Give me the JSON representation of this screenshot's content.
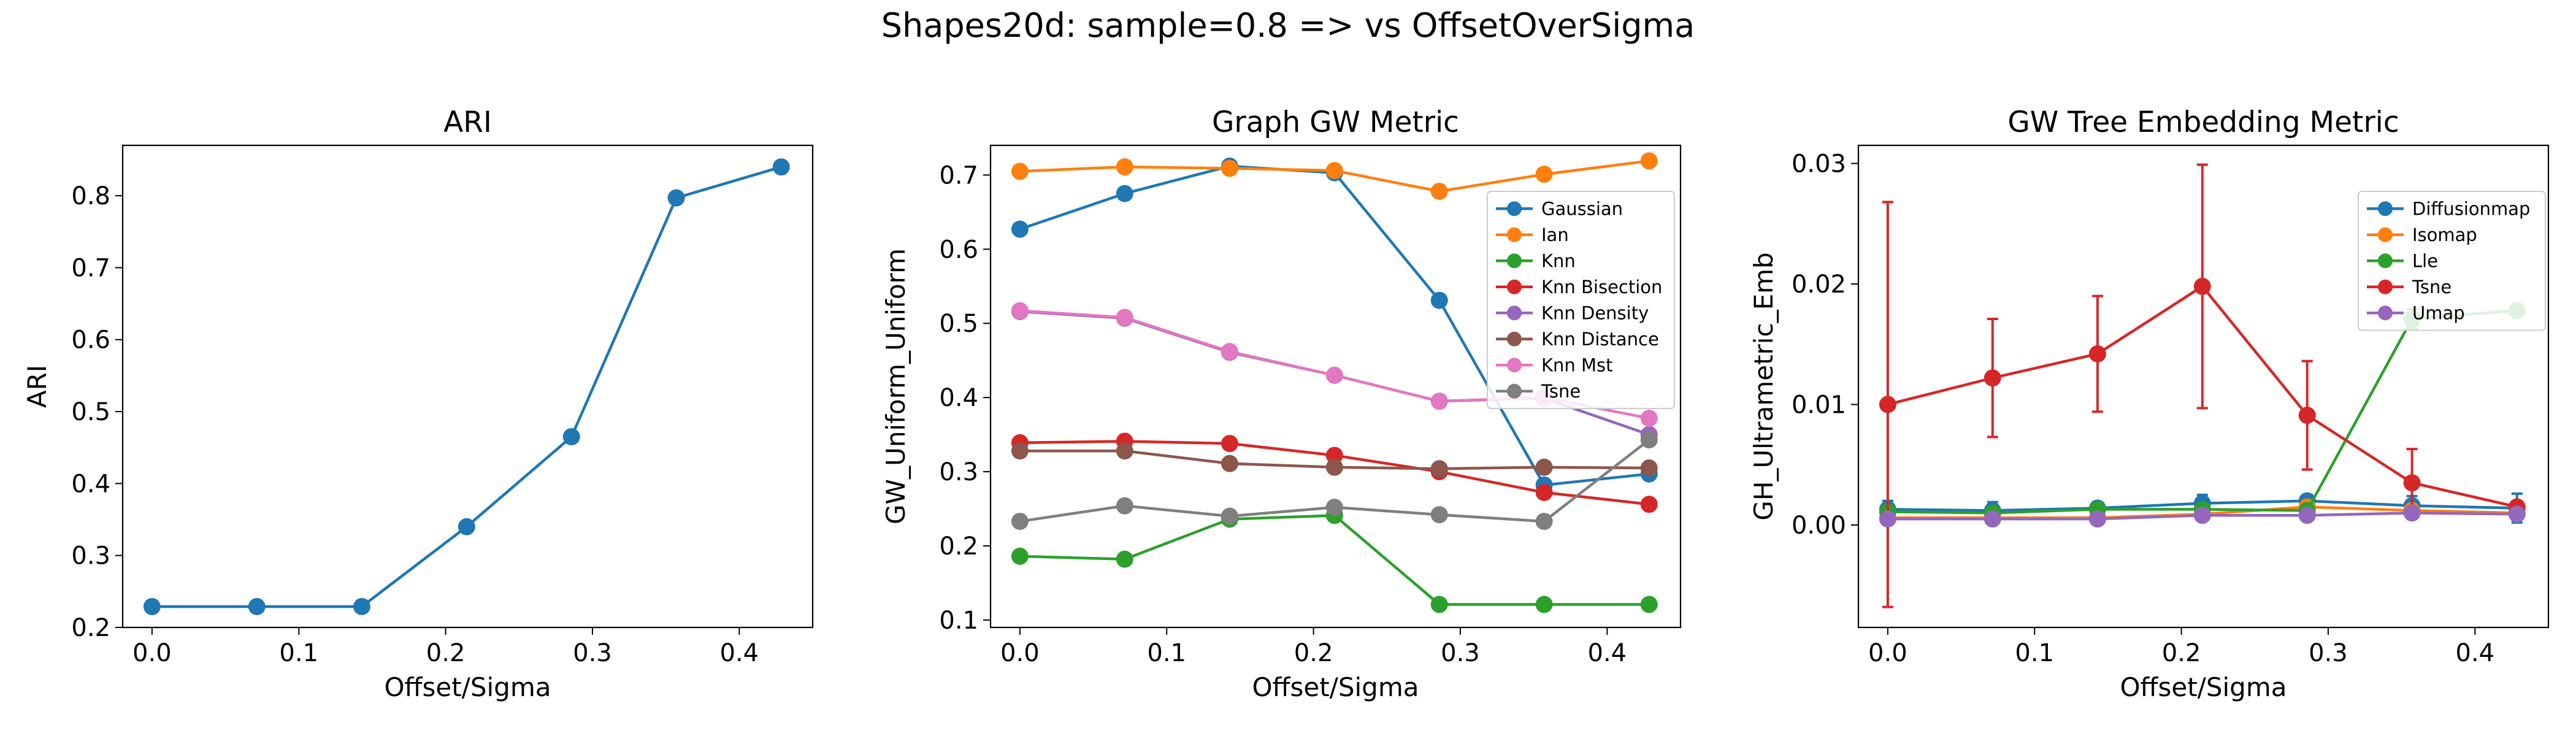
{
  "suptitle": "Shapes20d: sample=0.8 => vs OffsetOverSigma",
  "chart_data": [
    {
      "type": "line",
      "title": "ARI",
      "xlabel": "Offset/Sigma",
      "ylabel": "ARI",
      "xlim": [
        -0.02,
        0.45
      ],
      "ylim": [
        0.2,
        0.87
      ],
      "xticks": [
        0.0,
        0.1,
        0.2,
        0.3,
        0.4
      ],
      "xtick_labels": [
        "0.0",
        "0.1",
        "0.2",
        "0.3",
        "0.4"
      ],
      "yticks": [
        0.2,
        0.3,
        0.4,
        0.5,
        0.6,
        0.7,
        0.8
      ],
      "ytick_labels": [
        "0.2",
        "0.3",
        "0.4",
        "0.5",
        "0.6",
        "0.7",
        "0.8"
      ],
      "x": [
        0.0,
        0.0714,
        0.1429,
        0.2143,
        0.2857,
        0.3571,
        0.4286
      ],
      "series": [
        {
          "name": "",
          "color": "#1f77b4",
          "values": [
            0.229,
            0.229,
            0.229,
            0.34,
            0.465,
            0.797,
            0.84
          ]
        }
      ],
      "legend": null,
      "grid": false
    },
    {
      "type": "line",
      "title": "Graph GW Metric",
      "xlabel": "Offset/Sigma",
      "ylabel": "GW_Uniform_Uniform",
      "xlim": [
        -0.02,
        0.45
      ],
      "ylim": [
        0.09,
        0.74
      ],
      "xticks": [
        0.0,
        0.1,
        0.2,
        0.3,
        0.4
      ],
      "xtick_labels": [
        "0.0",
        "0.1",
        "0.2",
        "0.3",
        "0.4"
      ],
      "yticks": [
        0.1,
        0.2,
        0.3,
        0.4,
        0.5,
        0.6,
        0.7
      ],
      "ytick_labels": [
        "0.1",
        "0.2",
        "0.3",
        "0.4",
        "0.5",
        "0.6",
        "0.7"
      ],
      "x": [
        0.0,
        0.0714,
        0.1429,
        0.2143,
        0.2857,
        0.3571,
        0.4286
      ],
      "series": [
        {
          "name": "Gaussian",
          "color": "#1f77b4",
          "values": [
            0.627,
            0.675,
            0.712,
            0.703,
            0.531,
            0.282,
            0.297
          ]
        },
        {
          "name": "Ian",
          "color": "#ff7f0e",
          "values": [
            0.705,
            0.711,
            0.709,
            0.706,
            0.678,
            0.701,
            0.719
          ]
        },
        {
          "name": "Knn",
          "color": "#2ca02c",
          "values": [
            0.186,
            0.182,
            0.236,
            0.241,
            0.121,
            0.121,
            0.121
          ]
        },
        {
          "name": "Knn Bisection",
          "color": "#d62728",
          "values": [
            0.339,
            0.341,
            0.338,
            0.322,
            0.3,
            0.272,
            0.256
          ]
        },
        {
          "name": "Knn Density",
          "color": "#9467bd",
          "values": [
            0.516,
            0.507,
            0.461,
            0.43,
            0.395,
            0.399,
            0.35
          ]
        },
        {
          "name": "Knn Distance",
          "color": "#8c564b",
          "values": [
            0.328,
            0.328,
            0.311,
            0.306,
            0.304,
            0.306,
            0.305
          ]
        },
        {
          "name": "Knn Mst",
          "color": "#e377c2",
          "values": [
            0.517,
            0.508,
            0.462,
            0.43,
            0.395,
            0.4,
            0.372
          ]
        },
        {
          "name": "Tsne",
          "color": "#7f7f7f",
          "values": [
            0.233,
            0.254,
            0.24,
            0.252,
            0.242,
            0.233,
            0.343
          ]
        }
      ],
      "legend": "upper right",
      "grid": false
    },
    {
      "type": "line",
      "title": "GW Tree Embedding Metric",
      "xlabel": "Offset/Sigma",
      "ylabel": "GH_Ultrametric_Emb",
      "xlim": [
        -0.02,
        0.45
      ],
      "ylim": [
        -0.0085,
        0.0315
      ],
      "xticks": [
        0.0,
        0.1,
        0.2,
        0.3,
        0.4
      ],
      "xtick_labels": [
        "0.0",
        "0.1",
        "0.2",
        "0.3",
        "0.4"
      ],
      "yticks": [
        0.0,
        0.01,
        0.02,
        0.03
      ],
      "ytick_labels": [
        "0.00",
        "0.01",
        "0.02",
        "0.03"
      ],
      "x": [
        0.0,
        0.0714,
        0.1429,
        0.2143,
        0.2857,
        0.3571,
        0.4286
      ],
      "series": [
        {
          "name": "Diffusionmap",
          "color": "#1f77b4",
          "values": [
            0.0013,
            0.0012,
            0.0014,
            0.0018,
            0.002,
            0.0016,
            0.0014
          ],
          "errors": [
            0.0007,
            0.0007,
            0.0004,
            0.0007,
            0.0005,
            0.0008,
            0.0012
          ]
        },
        {
          "name": "Isomap",
          "color": "#ff7f0e",
          "values": [
            0.0006,
            0.0006,
            0.0006,
            0.0009,
            0.0015,
            0.0012,
            0.001
          ],
          "errors": [
            0.0003,
            0.0003,
            0.0003,
            0.0003,
            0.0003,
            0.0003,
            0.0003
          ]
        },
        {
          "name": "Lle",
          "color": "#2ca02c",
          "values": [
            0.0011,
            0.001,
            0.0013,
            0.0013,
            0.0012,
            0.0171,
            0.0178
          ],
          "errors": [
            0.0003,
            0.0003,
            0.0003,
            0.0003,
            0.0003,
            0.0008,
            0.0003
          ]
        },
        {
          "name": "Tsne",
          "color": "#d62728",
          "values": [
            0.01,
            0.0122,
            0.0142,
            0.0198,
            0.0091,
            0.0035,
            0.0015
          ],
          "errors": [
            0.0168,
            0.0049,
            0.0048,
            0.0101,
            0.0045,
            0.0028,
            0.0003
          ]
        },
        {
          "name": "Umap",
          "color": "#9467bd",
          "values": [
            0.0005,
            0.0005,
            0.0005,
            0.0008,
            0.0008,
            0.001,
            0.0009
          ],
          "errors": [
            0.0002,
            0.0002,
            0.0002,
            0.0002,
            0.0002,
            0.0002,
            0.0002
          ]
        }
      ],
      "legend": "upper right",
      "grid": false
    }
  ]
}
